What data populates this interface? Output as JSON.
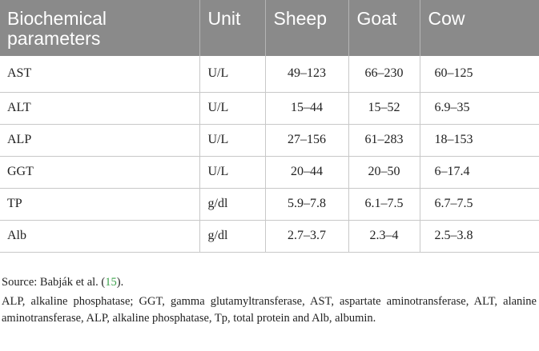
{
  "table": {
    "headers": [
      "Biochemical parameters",
      "Unit",
      "Sheep",
      "Goat",
      "Cow"
    ],
    "rows": [
      [
        "AST",
        "U/L",
        "49–123",
        "66–230",
        "60–125"
      ],
      [
        "ALT",
        "U/L",
        "15–44",
        "15–52",
        "6.9–35"
      ],
      [
        "ALP",
        "U/L",
        "27–156",
        "61–283",
        "18–153"
      ],
      [
        "GGT",
        "U/L",
        "20–44",
        "20–50",
        "6–17.4"
      ],
      [
        "TP",
        "g/dl",
        "5.9–7.8",
        "6.1–7.5",
        "6.7–7.5"
      ],
      [
        "Alb",
        "g/dl",
        "2.7–3.7",
        "2.3–4",
        "2.5–3.8"
      ]
    ]
  },
  "footnote": {
    "source_prefix": "Source: Babják et al. (",
    "source_ref": "15",
    "source_suffix": ").",
    "abbreviations": "ALP, alkaline phosphatase; GGT, gamma glutamyltransferase, AST, aspartate aminotransferase, ALT, alanine aminotransferase, ALP, alkaline phosphatase, Tp, total protein and Alb, albumin."
  },
  "colors": {
    "header_background": "#8a8a8a",
    "header_text": "#ffffff",
    "reference_link": "#3aa14a",
    "grid_lines": "#c8c8c8"
  }
}
